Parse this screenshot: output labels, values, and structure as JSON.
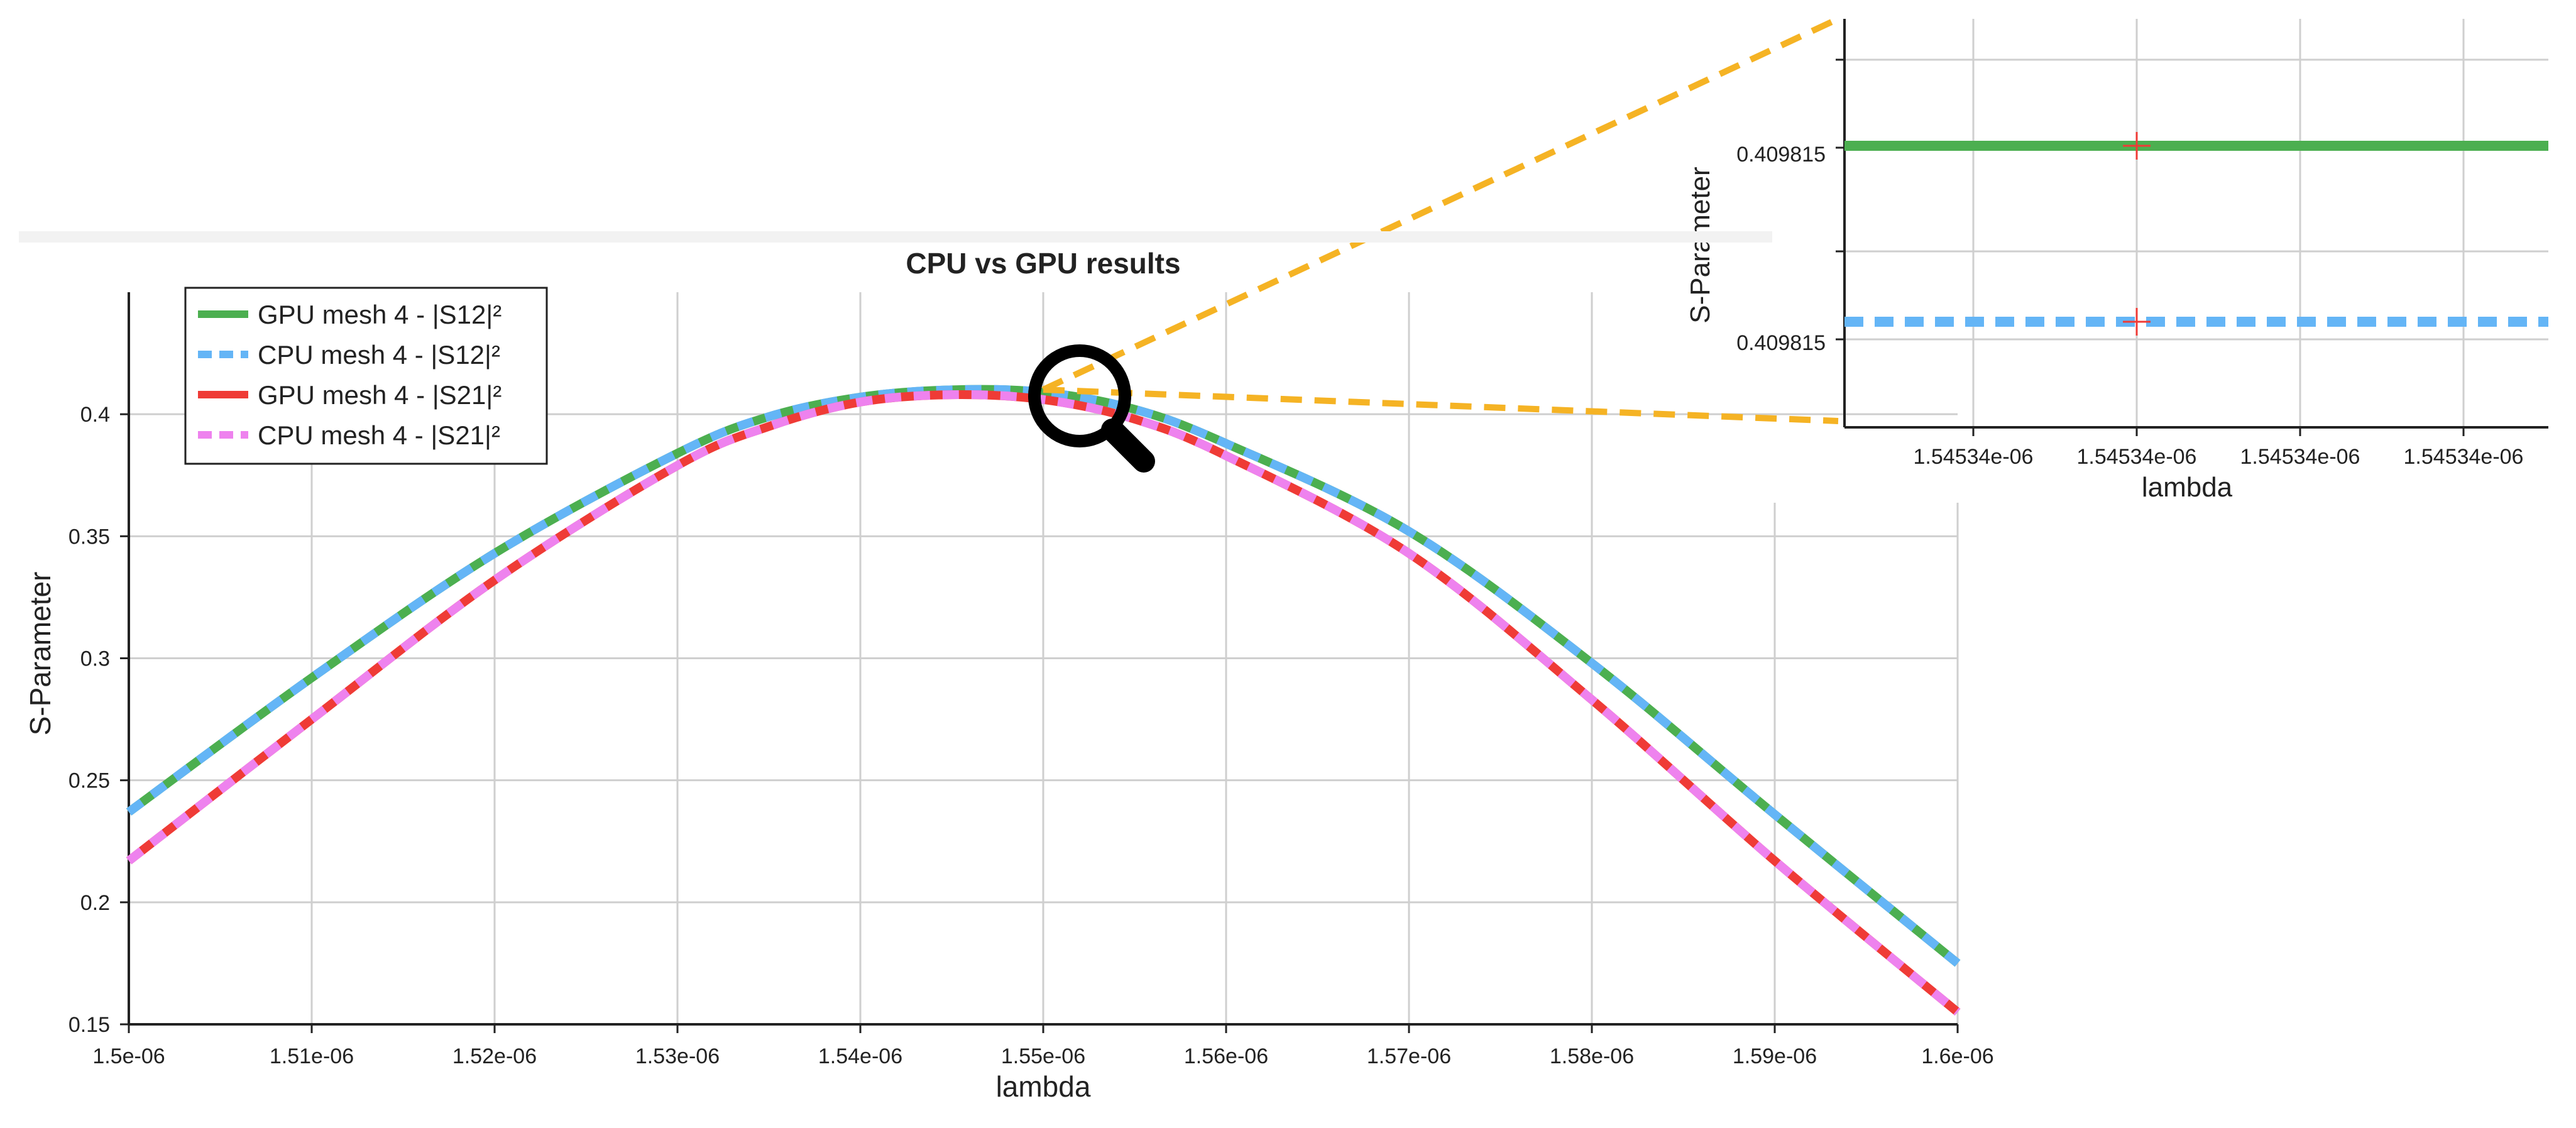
{
  "chart_data": [
    {
      "type": "line",
      "title": "CPU vs GPU results",
      "xlabel": "lambda",
      "ylabel": "S-Parameter",
      "xlim": [
        1.5e-06,
        1.6e-06
      ],
      "ylim": [
        0.15,
        0.45
      ],
      "x_ticks": [
        "1.5e-06",
        "1.51e-06",
        "1.52e-06",
        "1.53e-06",
        "1.54e-06",
        "1.55e-06",
        "1.56e-06",
        "1.57e-06",
        "1.58e-06",
        "1.59e-06",
        "1.6e-06"
      ],
      "y_ticks": [
        "0.15",
        "0.2",
        "0.25",
        "0.3",
        "0.35",
        "0.4"
      ],
      "y_tick_values": [
        0.15,
        0.2,
        0.25,
        0.3,
        0.35,
        0.4
      ],
      "grid": true,
      "legend_position": "top-left",
      "x": [
        1.5e-06,
        1.51e-06,
        1.52e-06,
        1.53e-06,
        1.535e-06,
        1.54e-06,
        1.545e-06,
        1.55e-06,
        1.555e-06,
        1.56e-06,
        1.57e-06,
        1.58e-06,
        1.59e-06,
        1.6e-06
      ],
      "series": [
        {
          "name": "GPU mesh 4 - |S12|²",
          "color": "#4caf50",
          "style": "solid",
          "values": [
            0.237,
            0.292,
            0.343,
            0.384,
            0.399,
            0.407,
            0.41,
            0.409,
            0.402,
            0.388,
            0.352,
            0.298,
            0.236,
            0.175
          ]
        },
        {
          "name": "CPU mesh 4 - |S12|²",
          "color": "#64b5f6",
          "style": "dashed",
          "values": [
            0.237,
            0.292,
            0.343,
            0.384,
            0.399,
            0.407,
            0.41,
            0.409,
            0.402,
            0.388,
            0.352,
            0.298,
            0.236,
            0.175
          ]
        },
        {
          "name": "GPU mesh 4 - |S21|²",
          "color": "#ef3b36",
          "style": "solid",
          "values": [
            0.217,
            0.275,
            0.332,
            0.379,
            0.395,
            0.405,
            0.408,
            0.406,
            0.398,
            0.383,
            0.343,
            0.283,
            0.217,
            0.155
          ]
        },
        {
          "name": "CPU mesh 4 - |S21|²",
          "color": "#ee82ee",
          "style": "dashed",
          "values": [
            0.217,
            0.275,
            0.332,
            0.379,
            0.395,
            0.405,
            0.408,
            0.406,
            0.398,
            0.383,
            0.343,
            0.283,
            0.217,
            0.155
          ]
        }
      ]
    },
    {
      "type": "line",
      "title": "",
      "xlabel": "lambda",
      "ylabel": "S-Parameter",
      "x_ticks": [
        "1.54534e-06",
        "1.54534e-06",
        "1.54534e-06",
        "1.54534e-06"
      ],
      "y_ticks": [
        "0.409815",
        "0.409815"
      ],
      "grid": true,
      "series": [
        {
          "name": "GPU mesh 4 - |S12|²",
          "color": "#4caf50",
          "style": "solid",
          "values": [
            0.409815
          ]
        },
        {
          "name": "CPU mesh 4 - |S12|²",
          "color": "#64b5f6",
          "style": "dashed",
          "values": [
            0.409815
          ]
        }
      ]
    }
  ],
  "ui": {
    "magnifier_icon": "magnifying-glass-icon",
    "callout_color": "#f5b324"
  }
}
